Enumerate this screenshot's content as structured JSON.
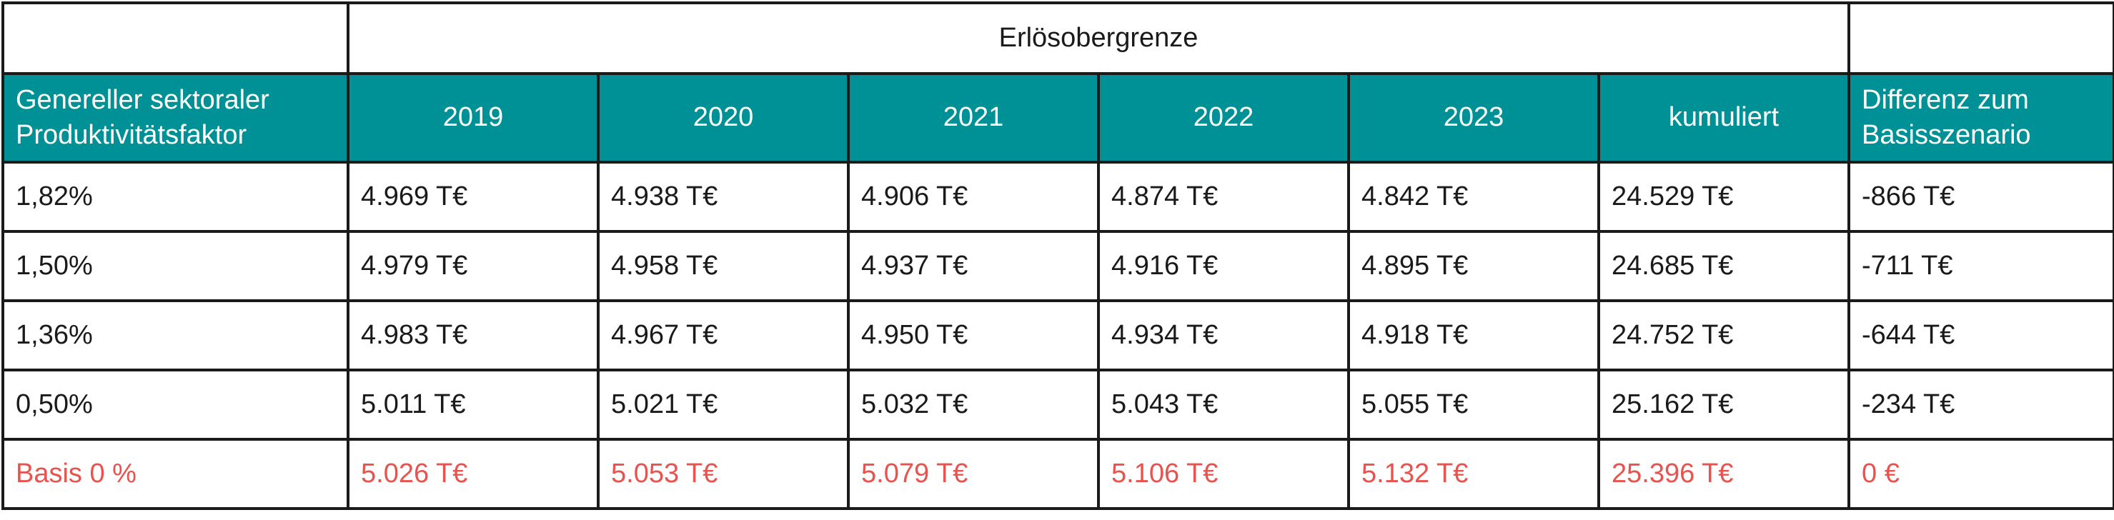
{
  "table": {
    "group_header": "Erlösobergrenze",
    "headers": {
      "factor": "Genereller sektoraler Produktivitätsfaktor",
      "years": [
        "2019",
        "2020",
        "2021",
        "2022",
        "2023"
      ],
      "cumulative": "kumuliert",
      "difference": "Differenz zum Basisszenario"
    },
    "rows": [
      {
        "factor": "1,82%",
        "values": [
          "4.969 T€",
          "4.938 T€",
          "4.906 T€",
          "4.874 T€",
          "4.842 T€"
        ],
        "cumulative": "24.529 T€",
        "difference": "-866 T€"
      },
      {
        "factor": "1,50%",
        "values": [
          "4.979 T€",
          "4.958 T€",
          "4.937 T€",
          "4.916 T€",
          "4.895 T€"
        ],
        "cumulative": "24.685 T€",
        "difference": "-711 T€"
      },
      {
        "factor": "1,36%",
        "values": [
          "4.983 T€",
          "4.967 T€",
          "4.950 T€",
          "4.934 T€",
          "4.918 T€"
        ],
        "cumulative": "24.752 T€",
        "difference": "-644 T€"
      },
      {
        "factor": "0,50%",
        "values": [
          "5.011 T€",
          "5.021 T€",
          "5.032 T€",
          "5.043 T€",
          "5.055 T€"
        ],
        "cumulative": "25.162 T€",
        "difference": "-234 T€"
      },
      {
        "factor": "Basis 0 %",
        "values": [
          "5.026 T€",
          "5.053 T€",
          "5.079 T€",
          "5.106 T€",
          "5.132 T€"
        ],
        "cumulative": "25.396 T€",
        "difference": "0 €"
      }
    ],
    "colors": {
      "header_background": "#009196",
      "header_text": "#ffffff",
      "base_row_text": "#e9524d",
      "border": "#1a1a1a"
    }
  }
}
